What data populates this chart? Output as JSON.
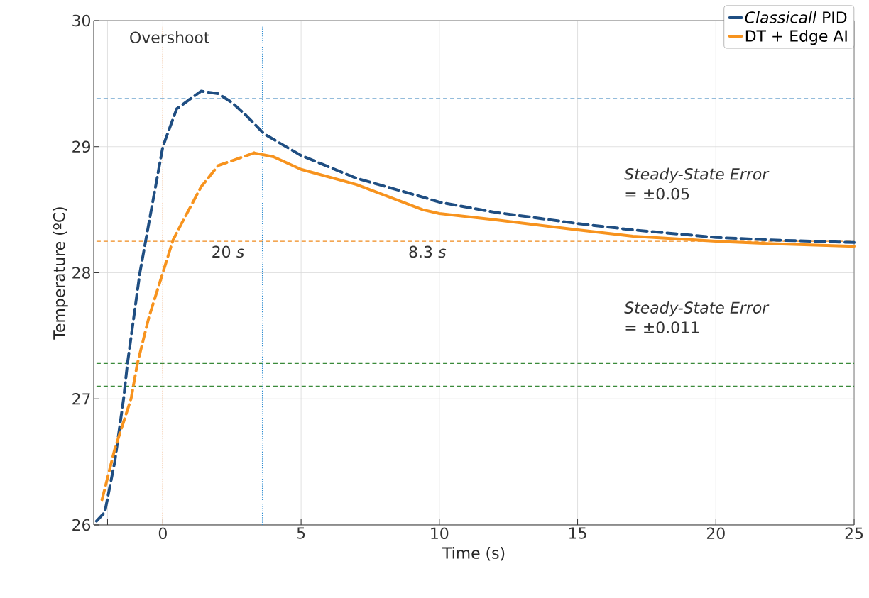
{
  "chart_data": {
    "type": "line",
    "xlabel": "Time (s)",
    "ylabel": "Temperature (ºC)",
    "xlim": [
      -2.5,
      25
    ],
    "ylim": [
      26,
      30
    ],
    "xticks": [
      {
        "value": -2,
        "label": null
      },
      0,
      5,
      10,
      15,
      20,
      25
    ],
    "yticks": [
      26,
      27,
      28,
      29,
      30
    ],
    "grid": true,
    "legend": "top right",
    "series": [
      {
        "name": "*Classicall* PID",
        "color": "#1f4e82",
        "line_style": "dashed",
        "x": [
          -2.4,
          -2.1,
          -1.74,
          -1.42,
          -1.28,
          -0.83,
          -0.5,
          0,
          0.5,
          1.38,
          2,
          2.5,
          3,
          3.67,
          5,
          7,
          9.4,
          10,
          12,
          15,
          17,
          20,
          22,
          25
        ],
        "values": [
          26.03,
          26.1,
          26.5,
          27.0,
          27.28,
          28.0,
          28.4,
          29.0,
          29.3,
          29.44,
          29.42,
          29.35,
          29.25,
          29.1,
          28.93,
          28.75,
          28.6,
          28.56,
          28.48,
          28.39,
          28.34,
          28.28,
          28.26,
          28.24
        ]
      },
      {
        "name": "DT + Edge AI",
        "color": "#f7931e",
        "line_style": "dashed",
        "x": [
          -2.2,
          -1.74,
          -1.15,
          -0.92,
          -0.5,
          0,
          0.37,
          0.7,
          1.38,
          2,
          3.3
        ],
        "values": [
          26.2,
          26.6,
          27.0,
          27.28,
          27.65,
          28.0,
          28.26,
          28.4,
          28.68,
          28.85,
          28.95
        ]
      },
      {
        "color": "#f7931e",
        "line_style": "solid",
        "x": [
          3.3,
          4,
          5,
          7,
          9.4,
          10,
          12,
          15,
          17,
          20,
          22,
          25
        ],
        "values": [
          28.95,
          28.92,
          28.82,
          28.7,
          28.5,
          28.47,
          28.42,
          28.34,
          28.29,
          28.25,
          28.23,
          28.21
        ]
      }
    ],
    "ref_lines": [
      {
        "axis": "y",
        "value": 29.38,
        "color": "#2a7ab8",
        "line_style": "dashed"
      },
      {
        "axis": "y",
        "value": 28.25,
        "color": "#f08a1c",
        "line_style": "dashed"
      },
      {
        "axis": "y",
        "value": 27.28,
        "color": "#3a8a3a",
        "line_style": "dashed"
      },
      {
        "axis": "y",
        "value": 27.1,
        "color": "#3a8a3a",
        "line_style": "dashed"
      },
      {
        "axis": "x",
        "value": 0,
        "color": "#f07010",
        "line_style": "dotted"
      },
      {
        "axis": "x",
        "value": 3.6,
        "color": "#2a8ad0",
        "line_style": "dotted"
      }
    ],
    "annotations": [
      "Overshoot",
      "20 *s*",
      "8.3 *s*",
      "*Steady-State Error* = ±0.05",
      "*Steady-State Error* = ±0.011"
    ]
  }
}
